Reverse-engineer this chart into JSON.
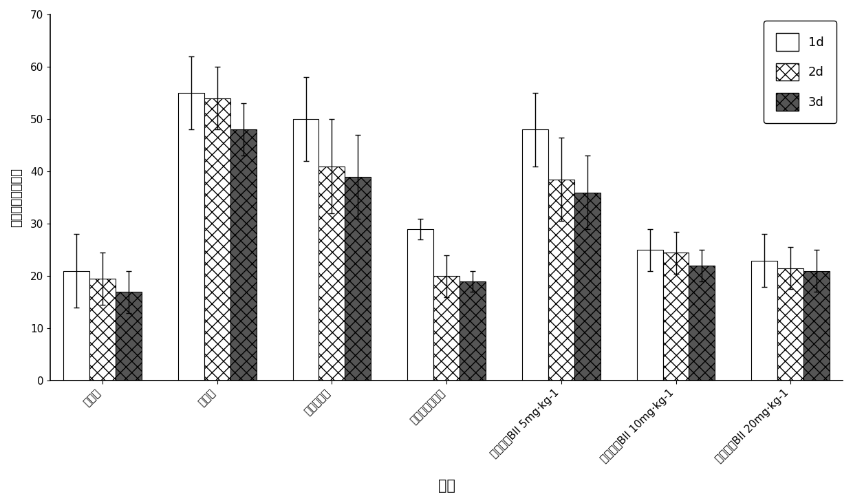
{
  "categories": [
    "正常组",
    "模型组",
    "空白糶胶组",
    "盐酸多奈哌齐组",
    "知母皂苷BII 5mg·kg-1",
    "知母皂苷BII 10mg·kg-1",
    "知母皂苷BII 20mg·kg-1"
  ],
  "values_1d": [
    21,
    55,
    50,
    29,
    48,
    25,
    23
  ],
  "values_2d": [
    19.5,
    54,
    41,
    20,
    38.5,
    24.5,
    21.5
  ],
  "values_3d": [
    17,
    48,
    39,
    19,
    36,
    22,
    21
  ],
  "errors_1d": [
    7,
    7,
    8,
    2,
    7,
    4,
    5
  ],
  "errors_2d": [
    5,
    6,
    9,
    4,
    8,
    4,
    4
  ],
  "errors_3d": [
    4,
    5,
    8,
    2,
    7,
    3,
    4
  ],
  "ylabel": "逃避潜伏期（秒）",
  "xlabel": "分组",
  "ylim": [
    0,
    70
  ],
  "yticks": [
    0,
    10,
    20,
    30,
    40,
    50,
    60,
    70
  ],
  "legend_labels": [
    "1d",
    "2d",
    "3d"
  ],
  "bar_width": 0.25,
  "bar_styles": [
    {
      "facecolor": "white",
      "hatch": "",
      "edgecolor": "black",
      "label": "1d"
    },
    {
      "facecolor": "white",
      "hatch": "xx",
      "edgecolor": "black",
      "label": "2d"
    },
    {
      "facecolor": "#555555",
      "hatch": "xx",
      "edgecolor": "black",
      "label": "3d"
    }
  ]
}
